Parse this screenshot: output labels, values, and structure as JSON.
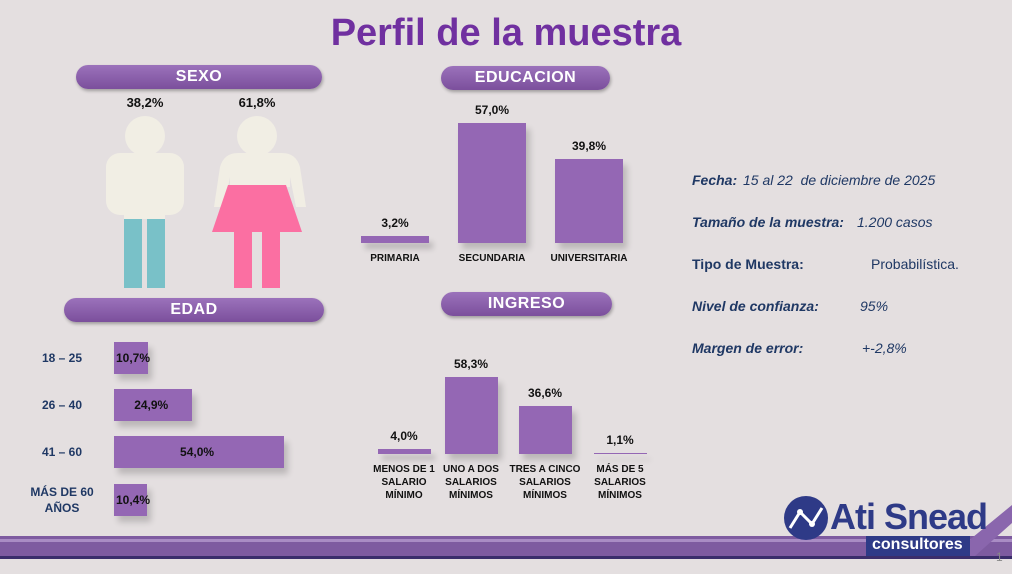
{
  "title": "Perfil de la muestra",
  "chart_data": [
    {
      "type": "pictograph",
      "title": "SEXO",
      "values": [
        38.2,
        61.8
      ],
      "value_labels": [
        "38,2%",
        "61,8%"
      ]
    },
    {
      "type": "bar",
      "title": "EDUCACION",
      "categories": [
        "PRIMARIA",
        "SECUNDARIA",
        "UNIVERSITARIA"
      ],
      "values": [
        3.2,
        57.0,
        39.8
      ],
      "value_labels": [
        "3,2%",
        "57,0%",
        "39,8%"
      ],
      "color": "#9467b4"
    },
    {
      "type": "hbar",
      "title": "EDAD",
      "categories": [
        "18 – 25",
        "26 – 40",
        "41 – 60",
        "MÁS DE 60 AÑOS"
      ],
      "values": [
        10.7,
        24.9,
        54.0,
        10.4
      ],
      "value_labels": [
        "10,7%",
        "24,9%",
        "54,0%",
        "10,4%"
      ],
      "color": "#9467b4"
    },
    {
      "type": "bar",
      "title": "INGRESO",
      "categories": [
        "MENOS DE 1 SALARIO MÍNIMO",
        "UNO A DOS SALARIOS MÍNIMOS",
        "TRES A CINCO SALARIOS MÍNIMOS",
        "MÁS DE 5 SALARIOS MÍNIMOS"
      ],
      "values": [
        4.0,
        58.3,
        36.6,
        1.1
      ],
      "value_labels": [
        "4,0%",
        "58,3%",
        "36,6%",
        "1,1%"
      ],
      "color": "#9467b4"
    }
  ],
  "info": [
    {
      "label": "Fecha:",
      "value": "15 al 22  de diciembre de 2025"
    },
    {
      "label": "Tamaño de la muestra:",
      "value": "1.200 casos"
    },
    {
      "label": "Tipo de Muestra:",
      "value": "Probabilística."
    },
    {
      "label": "Nivel de confianza:",
      "value": "95%"
    },
    {
      "label": "Margen de error:",
      "value": "+-2,8%"
    }
  ],
  "logo": {
    "name": "Ati Snead",
    "tagline": "consultores"
  },
  "page_number": "1"
}
